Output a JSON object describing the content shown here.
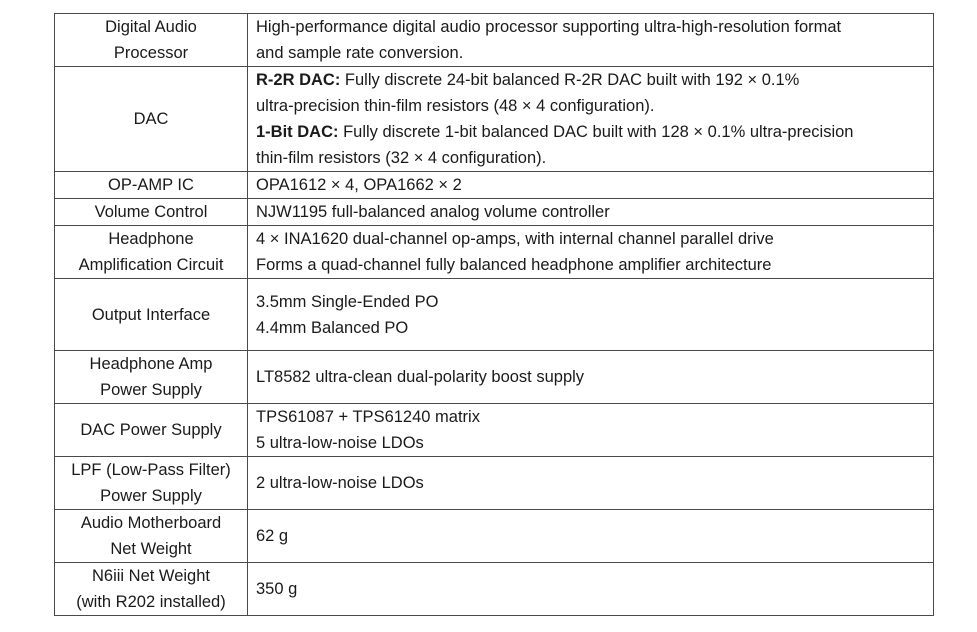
{
  "rows": [
    {
      "label": [
        "Digital Audio",
        "Processor"
      ],
      "lines": [
        {
          "text": "High-performance digital audio processor supporting ultra-high-resolution format"
        },
        {
          "text": "and sample rate conversion."
        }
      ]
    },
    {
      "label": [
        "DAC"
      ],
      "lines": [
        {
          "bold": "R-2R DAC:",
          "text": " Fully discrete 24-bit balanced R-2R DAC built with 192 × 0.1%"
        },
        {
          "text": "ultra-precision thin-film resistors (48 × 4 configuration)."
        },
        {
          "bold": "1-Bit DAC:",
          "text": " Fully discrete 1-bit balanced DAC built with 128 × 0.1% ultra-precision"
        },
        {
          "text": "thin-film resistors (32 × 4 configuration)."
        }
      ]
    },
    {
      "label": [
        "OP-AMP IC"
      ],
      "lines": [
        {
          "text": "OPA1612 × 4, OPA1662 × 2"
        }
      ]
    },
    {
      "label": [
        "Volume Control"
      ],
      "lines": [
        {
          "text": "NJW1195 full-balanced analog volume controller"
        }
      ]
    },
    {
      "label": [
        "Headphone",
        "Amplification Circuit"
      ],
      "lines": [
        {
          "text": "4 × INA1620 dual-channel op-amps, with internal channel parallel drive"
        },
        {
          "text": "Forms a quad-channel fully balanced headphone amplifier architecture"
        }
      ]
    },
    {
      "label": [
        "Output Interface"
      ],
      "lines": [
        {
          "text": "3.5mm Single-Ended PO"
        },
        {
          "text": "4.4mm Balanced PO"
        }
      ]
    },
    {
      "label": [
        "Headphone Amp",
        "Power Supply"
      ],
      "lines": [
        {
          "text": "LT8582 ultra-clean dual-polarity boost supply"
        }
      ]
    },
    {
      "label": [
        "DAC Power Supply"
      ],
      "lines": [
        {
          "text": "TPS61087 + TPS61240 matrix"
        },
        {
          "text": "5 ultra-low-noise LDOs"
        }
      ]
    },
    {
      "label": [
        "LPF (Low-Pass Filter)",
        "Power Supply"
      ],
      "lines": [
        {
          "text": "2 ultra-low-noise LDOs"
        }
      ]
    },
    {
      "label": [
        "Audio Motherboard",
        "Net Weight"
      ],
      "lines": [
        {
          "text": "62 g"
        }
      ]
    },
    {
      "label": [
        "N6iii Net Weight",
        "(with R202 installed)"
      ],
      "lines": [
        {
          "text": "350 g"
        }
      ]
    }
  ]
}
